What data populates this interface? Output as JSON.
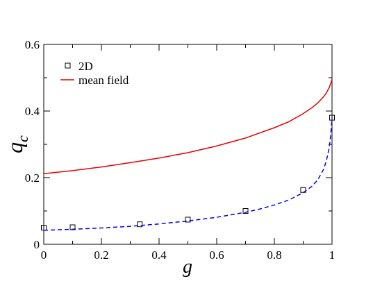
{
  "chart_data": {
    "type": "scatter",
    "xlabel": "g",
    "ylabel": "q",
    "ylabel_subscript": "c",
    "xlim": [
      0,
      1
    ],
    "ylim": [
      0,
      0.6
    ],
    "xticks": [
      0,
      0.2,
      0.4,
      0.6,
      0.8,
      1
    ],
    "xtick_labels": [
      "0",
      "0.2",
      "0.4",
      "0.6",
      "0.8",
      "1"
    ],
    "yticks": [
      0,
      0.2,
      0.4,
      0.6
    ],
    "ytick_labels": [
      "0",
      "0.2",
      "0.4",
      "0.6"
    ],
    "legend": {
      "position": "top-left"
    },
    "series": [
      {
        "name": "2D",
        "kind": "markers",
        "marker": "open-square",
        "color": "#000000",
        "x": [
          0,
          0.1,
          0.333,
          0.5,
          0.7,
          0.9,
          1.0
        ],
        "y": [
          0.05,
          0.051,
          0.06,
          0.074,
          0.1,
          0.163,
          0.38
        ]
      },
      {
        "name": "",
        "kind": "line",
        "style": "dashed",
        "color": "#0000e6",
        "x": [
          0,
          0.1,
          0.2,
          0.3,
          0.4,
          0.5,
          0.6,
          0.7,
          0.75,
          0.8,
          0.85,
          0.9,
          0.93,
          0.95,
          0.97,
          0.98,
          0.99,
          0.995,
          1.0
        ],
        "y": [
          0.042,
          0.045,
          0.049,
          0.054,
          0.061,
          0.07,
          0.081,
          0.096,
          0.106,
          0.118,
          0.133,
          0.155,
          0.174,
          0.193,
          0.224,
          0.249,
          0.289,
          0.322,
          0.38
        ]
      },
      {
        "name": "mean field",
        "kind": "line",
        "style": "solid",
        "color": "#e60000",
        "x": [
          0,
          0.1,
          0.2,
          0.3,
          0.4,
          0.5,
          0.6,
          0.7,
          0.8,
          0.85,
          0.9,
          0.93,
          0.95,
          0.97,
          0.98,
          0.99,
          0.995,
          1.0
        ],
        "y": [
          0.212,
          0.221,
          0.232,
          0.245,
          0.259,
          0.275,
          0.295,
          0.319,
          0.35,
          0.368,
          0.392,
          0.41,
          0.424,
          0.442,
          0.454,
          0.47,
          0.481,
          0.495
        ]
      }
    ]
  }
}
